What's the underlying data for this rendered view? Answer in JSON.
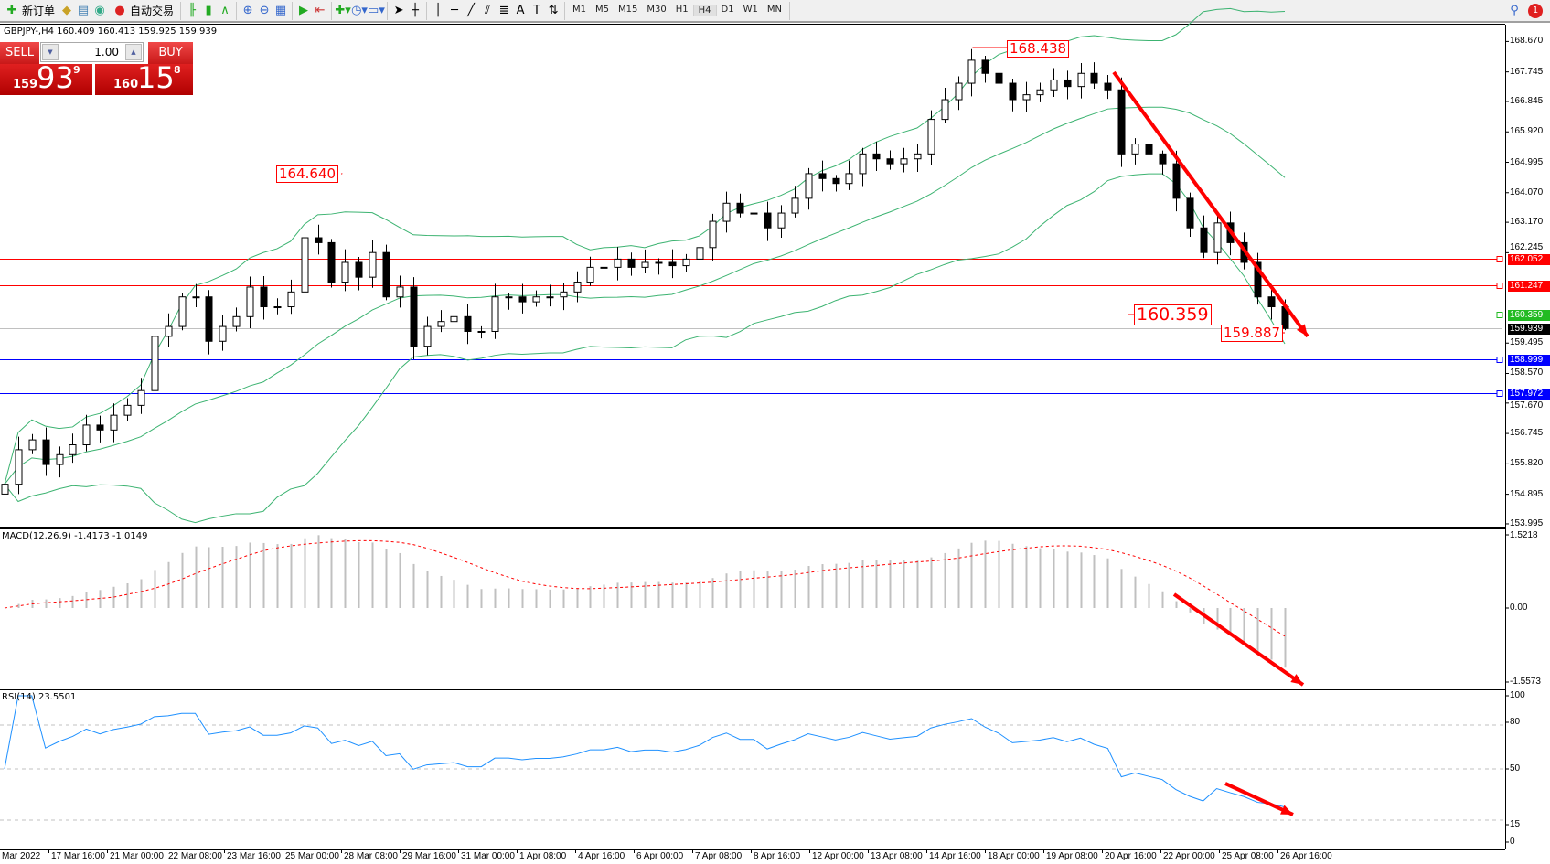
{
  "toolbar": {
    "new_order": "新订单",
    "auto_trading": "自动交易",
    "timeframes": [
      "M1",
      "M5",
      "M15",
      "M30",
      "H1",
      "H4",
      "D1",
      "W1",
      "MN"
    ],
    "active_timeframe": "H4",
    "notification_count": "1",
    "icons": [
      "new-order-icon",
      "history-center-icon",
      "market-watch-icon",
      "signals-icon",
      "auto-trading-icon",
      "bar-chart-icon",
      "candlestick-icon",
      "line-chart-icon",
      "zoom-in-icon",
      "zoom-out-icon",
      "tile-windows-icon",
      "autoscroll-icon",
      "chart-shift-icon",
      "indicators-icon",
      "periods-icon",
      "templates-icon",
      "cursor-icon",
      "crosshair-icon",
      "vertical-line-icon",
      "horizontal-line-icon",
      "trendline-icon",
      "equidistant-channel-icon",
      "fibonacci-icon",
      "text-icon",
      "text-label-icon",
      "arrows-icon"
    ]
  },
  "chart": {
    "title": "GBPJPY-,H4  160.409 160.413 159.925 159.939",
    "oneclick": {
      "sell": "SELL",
      "buy": "BUY",
      "lot": "1.00",
      "sell_big": "159",
      "sell_main": "93",
      "sell_pip": "9",
      "buy_big": "160",
      "buy_main": "15",
      "buy_pip": "8"
    },
    "price_ticks": [
      "168.670",
      "167.745",
      "166.845",
      "165.920",
      "164.995",
      "164.070",
      "163.170",
      "162.245",
      "159.495",
      "158.570",
      "157.670",
      "156.745",
      "155.820",
      "154.895",
      "153.995"
    ],
    "levels": [
      {
        "price": "162.052",
        "color": "#ff0000"
      },
      {
        "price": "161.247",
        "color": "#ff0000"
      },
      {
        "price": "160.359",
        "color": "#22bb22"
      },
      {
        "price": "159.939",
        "color": "#000000",
        "line": "#c0c0c0"
      },
      {
        "price": "158.999",
        "color": "#0000ff"
      },
      {
        "price": "157.972",
        "color": "#0000ff"
      }
    ],
    "annotations": {
      "high1": "164.640",
      "high2": "168.438",
      "level": "160.359",
      "low": "159.887"
    },
    "time_labels": [
      "Mar 2022",
      "17 Mar 16:00",
      "21 Mar 00:00",
      "22 Mar 08:00",
      "23 Mar 16:00",
      "25 Mar 00:00",
      "28 Mar 08:00",
      "29 Mar 16:00",
      "31 Mar 00:00",
      "1 Apr 08:00",
      "4 Apr 16:00",
      "6 Apr 00:00",
      "7 Apr 08:00",
      "8 Apr 16:00",
      "12 Apr 00:00",
      "13 Apr 08:00",
      "14 Apr 16:00",
      "18 Apr 00:00",
      "19 Apr 08:00",
      "20 Apr 16:00",
      "22 Apr 00:00",
      "25 Apr 08:00",
      "26 Apr 16:00"
    ],
    "macd": {
      "label": "MACD(12,26,9) -1.4173 -1.0149",
      "ticks": [
        "1.5218",
        "0.00",
        "-1.5573"
      ]
    },
    "rsi": {
      "label": "RSI(14) 23.5501",
      "ticks": [
        "100",
        "80",
        "50",
        "15",
        "0"
      ]
    },
    "colors": {
      "bands": "#3cb371",
      "trend_arrow": "#ff0000",
      "macd_hist": "#c0c0c0",
      "macd_signal": "#ff0000",
      "rsi": "#1e90ff"
    }
  },
  "chart_data": {
    "type": "candlestick",
    "symbol": "GBPJPY-",
    "timeframe": "H4",
    "ylim": [
      153.995,
      168.67
    ],
    "closes": [
      155.2,
      156.25,
      156.55,
      155.8,
      156.1,
      156.4,
      157.0,
      156.85,
      157.3,
      157.6,
      158.05,
      159.7,
      160.0,
      160.9,
      160.9,
      159.55,
      160.0,
      160.3,
      161.2,
      160.6,
      160.6,
      161.05,
      162.7,
      162.55,
      161.35,
      161.95,
      161.5,
      162.25,
      160.9,
      161.2,
      159.4,
      160.0,
      160.15,
      160.3,
      159.85,
      159.85,
      160.9,
      160.9,
      160.75,
      160.9,
      160.9,
      161.05,
      161.35,
      161.8,
      161.8,
      162.05,
      161.8,
      161.95,
      161.95,
      161.85,
      162.05,
      162.4,
      163.2,
      163.75,
      163.45,
      163.45,
      163.0,
      163.45,
      163.9,
      164.65,
      164.5,
      164.35,
      164.65,
      165.25,
      165.1,
      164.95,
      165.1,
      165.25,
      166.3,
      166.9,
      167.4,
      168.1,
      167.7,
      167.4,
      166.9,
      167.05,
      167.2,
      167.5,
      167.3,
      167.7,
      167.4,
      167.2,
      165.25,
      165.55,
      165.25,
      164.95,
      163.9,
      163.0,
      162.25,
      163.15,
      162.55,
      161.95,
      160.9,
      160.6,
      159.939
    ]
  }
}
